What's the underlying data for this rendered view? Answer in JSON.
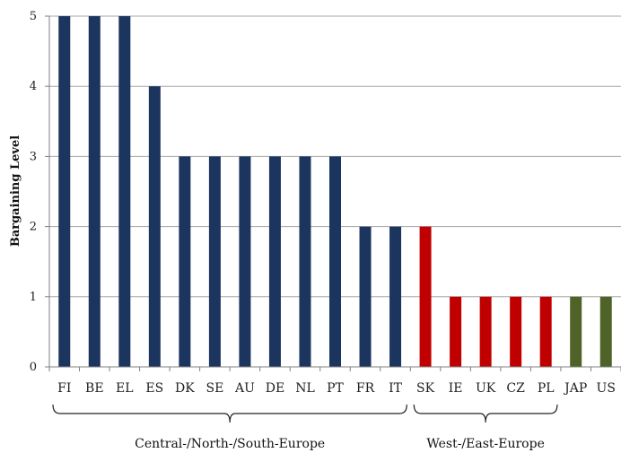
{
  "chart_data": {
    "type": "bar",
    "title": "",
    "xlabel": "",
    "ylabel": "Bargaining Level",
    "ylim": [
      0,
      5
    ],
    "yticks": [
      0,
      1,
      2,
      3,
      4,
      5
    ],
    "grid": true,
    "legend": "none",
    "categories": [
      "FI",
      "BE",
      "EL",
      "ES",
      "DK",
      "SE",
      "AU",
      "DE",
      "NL",
      "PT",
      "FR",
      "IT",
      "SK",
      "IE",
      "UK",
      "CZ",
      "PL",
      "JAP",
      "US"
    ],
    "values": [
      5,
      5,
      5,
      4,
      3,
      3,
      3,
      3,
      3,
      3,
      2,
      2,
      2,
      1,
      1,
      1,
      1,
      1,
      1
    ],
    "bar_groups": [
      "central",
      "central",
      "central",
      "central",
      "central",
      "central",
      "central",
      "central",
      "central",
      "central",
      "central",
      "central",
      "east",
      "east",
      "east",
      "east",
      "east",
      "other",
      "other"
    ],
    "colors": {
      "central": "#1c355e",
      "east": "#c00000",
      "other": "#4f6228",
      "grid": "#a6a6a6",
      "axis": "#7f7f7f"
    },
    "group_braces": [
      {
        "label": "Central-/North-/South-Europe",
        "start": "FI",
        "end": "IT"
      },
      {
        "label": "West-/East-Europe",
        "start": "SK",
        "end": "PL"
      }
    ]
  }
}
